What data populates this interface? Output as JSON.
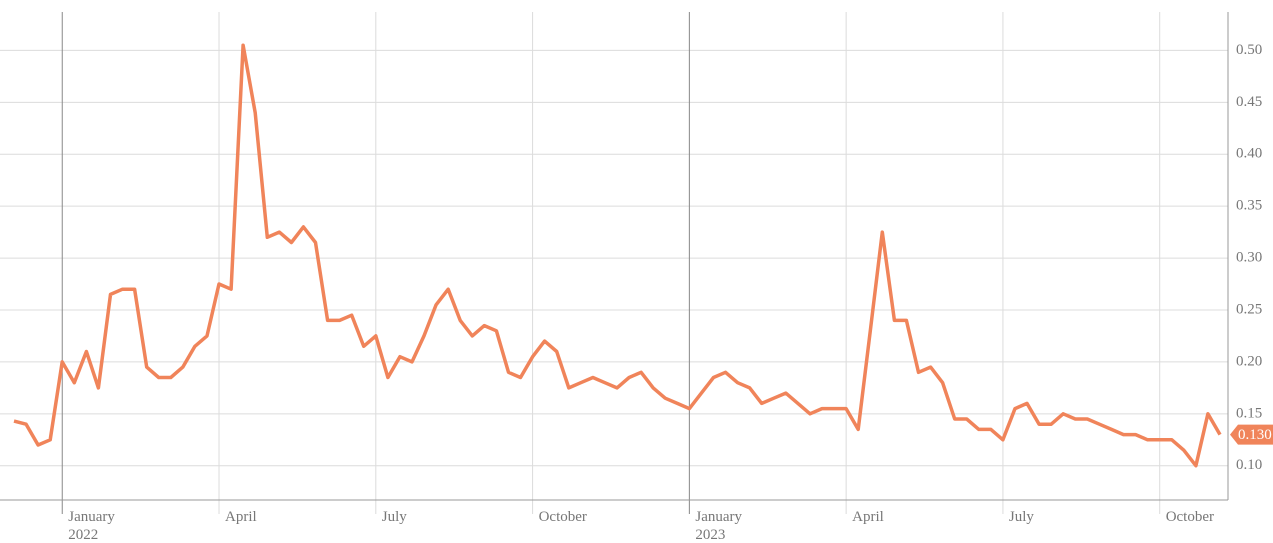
{
  "chart_data": {
    "type": "line",
    "color": "#f0845a",
    "categories": [
      null,
      null,
      null,
      null,
      "January 2022",
      null,
      null,
      null,
      null,
      null,
      null,
      null,
      null,
      null,
      null,
      null,
      null,
      "April",
      null,
      null,
      null,
      null,
      null,
      null,
      null,
      null,
      null,
      null,
      null,
      null,
      "July",
      null,
      null,
      null,
      null,
      null,
      null,
      null,
      null,
      null,
      null,
      null,
      null,
      "October",
      null,
      null,
      null,
      null,
      null,
      null,
      null,
      null,
      null,
      null,
      null,
      null,
      "January 2023",
      null,
      null,
      null,
      null,
      null,
      null,
      null,
      null,
      null,
      null,
      null,
      null,
      "April",
      null,
      null,
      null,
      null,
      null,
      null,
      null,
      null,
      null,
      null,
      null,
      null,
      "July",
      null,
      null,
      null,
      null,
      null,
      null,
      null,
      null,
      null,
      null,
      null,
      null,
      "October",
      null,
      null,
      null,
      null,
      null
    ],
    "values": [
      0.143,
      0.14,
      0.12,
      0.125,
      0.2,
      0.18,
      0.21,
      0.175,
      0.265,
      0.27,
      0.27,
      0.195,
      0.185,
      0.185,
      0.195,
      0.215,
      0.225,
      0.275,
      0.27,
      0.505,
      0.44,
      0.32,
      0.325,
      0.315,
      0.33,
      0.315,
      0.24,
      0.24,
      0.245,
      0.215,
      0.225,
      0.185,
      0.205,
      0.2,
      0.225,
      0.255,
      0.27,
      0.24,
      0.225,
      0.235,
      0.23,
      0.19,
      0.185,
      0.205,
      0.22,
      0.21,
      0.175,
      0.18,
      0.185,
      0.18,
      0.175,
      0.185,
      0.19,
      0.175,
      0.165,
      0.16,
      0.155,
      0.17,
      0.185,
      0.19,
      0.18,
      0.175,
      0.16,
      0.165,
      0.17,
      0.16,
      0.15,
      0.155,
      0.155,
      0.155,
      0.135,
      0.23,
      0.325,
      0.24,
      0.24,
      0.19,
      0.195,
      0.18,
      0.145,
      0.145,
      0.135,
      0.135,
      0.125,
      0.155,
      0.16,
      0.14,
      0.14,
      0.15,
      0.145,
      0.145,
      0.14,
      0.135,
      0.13,
      0.13,
      0.125,
      0.125,
      0.125,
      0.115,
      0.1,
      0.15,
      0.13
    ],
    "value_labels": [
      null,
      null,
      null,
      null,
      null,
      null,
      null,
      null,
      null,
      null,
      null,
      null,
      null,
      null,
      null,
      null,
      null,
      null,
      null,
      null,
      null,
      null,
      null,
      null,
      null,
      null,
      null,
      null,
      null,
      null,
      null,
      null,
      null,
      null,
      null,
      null,
      null,
      null,
      null,
      null,
      null,
      null,
      null,
      null,
      null,
      null,
      null,
      null,
      null,
      null,
      null,
      null,
      null,
      null,
      null,
      null,
      null,
      null,
      null,
      null,
      null,
      null,
      null,
      null,
      null,
      null,
      null,
      null,
      null,
      null,
      null,
      null,
      null,
      null,
      null,
      null,
      null,
      null,
      null,
      null,
      null,
      null,
      null,
      null,
      null,
      null,
      null,
      null,
      null,
      null,
      null,
      null,
      null,
      null,
      null,
      null,
      null,
      null,
      null,
      null,
      "0.130"
    ],
    "ylim": [
      0.067,
      0.537
    ],
    "yticks": [
      {
        "value": 0.1,
        "label": "0.10"
      },
      {
        "value": 0.15,
        "label": "0.15"
      },
      {
        "value": 0.2,
        "label": "0.20"
      },
      {
        "value": 0.25,
        "label": "0.25"
      },
      {
        "value": 0.3,
        "label": "0.30"
      },
      {
        "value": 0.35,
        "label": "0.35"
      },
      {
        "value": 0.4,
        "label": "0.40"
      },
      {
        "value": 0.45,
        "label": "0.45"
      },
      {
        "value": 0.5,
        "label": "0.50"
      }
    ],
    "grid": true
  }
}
